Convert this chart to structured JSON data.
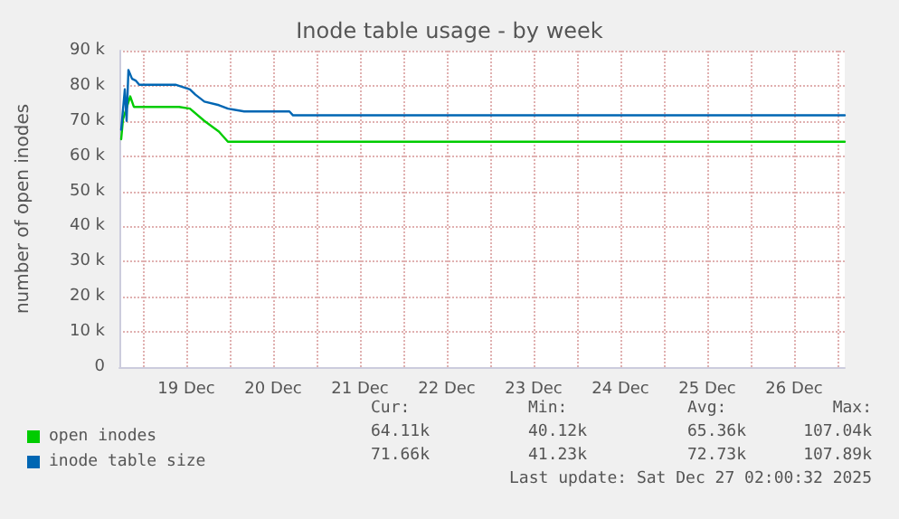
{
  "chart_data": {
    "type": "line",
    "title": "Inode table usage - by week",
    "ylabel": "number of open inodes",
    "xlim": [
      "2025-12-18T17:30",
      "2025-12-27T02:00"
    ],
    "xticks": [
      {
        "value": "2025-12-19T00:00",
        "label": null
      },
      {
        "value": "2025-12-19T12:00",
        "label": "19 Dec"
      },
      {
        "value": "2025-12-20T00:00",
        "label": null
      },
      {
        "value": "2025-12-20T12:00",
        "label": "20 Dec"
      },
      {
        "value": "2025-12-21T00:00",
        "label": null
      },
      {
        "value": "2025-12-21T12:00",
        "label": "21 Dec"
      },
      {
        "value": "2025-12-22T00:00",
        "label": null
      },
      {
        "value": "2025-12-22T12:00",
        "label": "22 Dec"
      },
      {
        "value": "2025-12-23T00:00",
        "label": null
      },
      {
        "value": "2025-12-23T12:00",
        "label": "23 Dec"
      },
      {
        "value": "2025-12-24T00:00",
        "label": null
      },
      {
        "value": "2025-12-24T12:00",
        "label": "24 Dec"
      },
      {
        "value": "2025-12-25T00:00",
        "label": null
      },
      {
        "value": "2025-12-25T12:00",
        "label": "25 Dec"
      },
      {
        "value": "2025-12-26T00:00",
        "label": null
      },
      {
        "value": "2025-12-26T12:00",
        "label": "26 Dec"
      },
      {
        "value": "2025-12-27T00:00",
        "label": null
      }
    ],
    "ylim": [
      0,
      90000
    ],
    "yticks": [
      0,
      {
        "value": 10000,
        "label": "10 k"
      },
      {
        "value": 20000,
        "label": "20 k"
      },
      {
        "value": 30000,
        "label": "30 k"
      },
      {
        "value": 40000,
        "label": "40 k"
      },
      {
        "value": 50000,
        "label": "50 k"
      },
      {
        "value": 60000,
        "label": "60 k"
      },
      {
        "value": 70000,
        "label": "70 k"
      },
      {
        "value": 80000,
        "label": "80 k"
      },
      {
        "value": 90000,
        "label": "90 k"
      }
    ],
    "grid": true,
    "legend": "bottom left",
    "marker": "none",
    "line_style": "solid",
    "series": [
      {
        "name": "open inodes",
        "color": "#00cc00",
        "x": [
          "2025-12-18T18:00",
          "2025-12-18T18:30",
          "2025-12-18T20:30",
          "2025-12-18T21:30",
          "2025-12-19T10:00",
          "2025-12-19T13:00",
          "2025-12-19T17:00",
          "2025-12-19T21:00",
          "2025-12-19T23:30",
          "2025-12-27T02:00"
        ],
        "values": [
          64800,
          70500,
          77000,
          74000,
          74000,
          73500,
          70000,
          67000,
          64100,
          64100
        ]
      },
      {
        "name": "inode table size",
        "color": "#0066b3",
        "x": [
          "2025-12-18T18:00",
          "2025-12-18T19:00",
          "2025-12-18T19:30",
          "2025-12-18T20:00",
          "2025-12-18T21:00",
          "2025-12-18T22:00",
          "2025-12-18T23:00",
          "2025-12-19T09:00",
          "2025-12-19T13:00",
          "2025-12-19T14:30",
          "2025-12-19T17:00",
          "2025-12-19T21:00",
          "2025-12-19T23:30",
          "2025-12-20T04:00",
          "2025-12-20T16:30",
          "2025-12-20T17:30",
          "2025-12-27T02:00"
        ],
        "values": [
          67500,
          79000,
          70000,
          84500,
          82000,
          81500,
          80300,
          80300,
          79000,
          77500,
          75500,
          74500,
          73500,
          72700,
          72700,
          71600,
          71600
        ]
      }
    ],
    "annotations": [
      "Cur:",
      "Min:",
      "Avg:",
      "Max:",
      "64.11k",
      "40.12k",
      "65.36k",
      "107.04k",
      "71.66k",
      "41.23k",
      "72.73k",
      "107.89k",
      "Last update: Sat Dec 27 02:00:32 2025"
    ]
  }
}
